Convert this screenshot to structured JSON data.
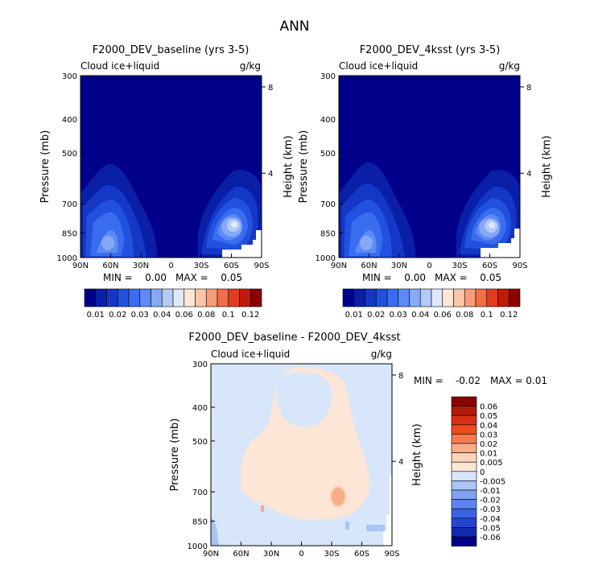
{
  "page": {
    "title": "ANN"
  },
  "chart_data": [
    {
      "type": "heatmap",
      "title": "F2000_DEV_baseline (yrs 3-5)",
      "field": "Cloud ice+liquid",
      "units": "g/kg",
      "ylabel": "Pressure (mb)",
      "ylabel_right": "Height (km)",
      "y_ticks": [
        "300",
        "400",
        "500",
        "700",
        "850",
        "1000"
      ],
      "y_ticks_right": [
        "8",
        "4"
      ],
      "x_ticks": [
        "90N",
        "60N",
        "30N",
        "0",
        "30S",
        "60S",
        "90S"
      ],
      "min_label": "MIN =",
      "min_value": "0.00",
      "max_label": "MAX =",
      "max_value": "0.05",
      "colorbar_levels": [
        "0.01",
        "0.02",
        "0.03",
        "0.04",
        "0.06",
        "0.08",
        "0.1",
        "0.12"
      ]
    },
    {
      "type": "heatmap",
      "title": "F2000_DEV_4ksst (yrs 3-5)",
      "field": "Cloud ice+liquid",
      "units": "g/kg",
      "ylabel": "Pressure (mb)",
      "ylabel_right": "Height (km)",
      "y_ticks": [
        "300",
        "400",
        "500",
        "700",
        "850",
        "1000"
      ],
      "y_ticks_right": [
        "8",
        "4"
      ],
      "x_ticks": [
        "90N",
        "60N",
        "30N",
        "0",
        "30S",
        "60S",
        "90S"
      ],
      "min_label": "MIN =",
      "min_value": "0.00",
      "max_label": "MAX =",
      "max_value": "0.05",
      "colorbar_levels": [
        "0.01",
        "0.02",
        "0.03",
        "0.04",
        "0.06",
        "0.08",
        "0.1",
        "0.12"
      ]
    },
    {
      "type": "heatmap",
      "title": "F2000_DEV_baseline - F2000_DEV_4ksst",
      "field": "Cloud ice+liquid",
      "units": "g/kg",
      "ylabel": "Pressure (mb)",
      "ylabel_right": "Height (km)",
      "y_ticks": [
        "300",
        "400",
        "500",
        "700",
        "850",
        "1000"
      ],
      "y_ticks_right": [
        "8",
        "4"
      ],
      "x_ticks": [
        "90N",
        "60N",
        "30N",
        "0",
        "30S",
        "60S",
        "90S"
      ],
      "min_label": "MIN =",
      "min_value": "-0.02",
      "max_label": "MAX =",
      "max_value": "0.01",
      "colorbar_levels": [
        "0.06",
        "0.05",
        "0.04",
        "0.03",
        "0.02",
        "0.01",
        "0.005",
        "0",
        "-0.005",
        "-0.01",
        "-0.02",
        "-0.03",
        "-0.04",
        "-0.05",
        "-0.06"
      ]
    }
  ],
  "colors": {
    "seq": [
      "#00008b",
      "#0a1fa8",
      "#1437c6",
      "#2151de",
      "#3a6cf0",
      "#5d8af5",
      "#86a9f7",
      "#b4cbf8",
      "#dde8fb",
      "#fde6d6",
      "#fbc6a8",
      "#f79d78",
      "#f16e46",
      "#e33c1d",
      "#c21a0a",
      "#8b0000"
    ],
    "diff": [
      "#8b0000",
      "#b41a08",
      "#d62f12",
      "#ee4a20",
      "#f77b4f",
      "#fbab86",
      "#fdd3bc",
      "#fde6d6",
      "#d7e6fa",
      "#a9c4f5",
      "#7fa2f1",
      "#5c84ee",
      "#3c64e6",
      "#2146d0",
      "#0f2cb0",
      "#00008b"
    ]
  }
}
